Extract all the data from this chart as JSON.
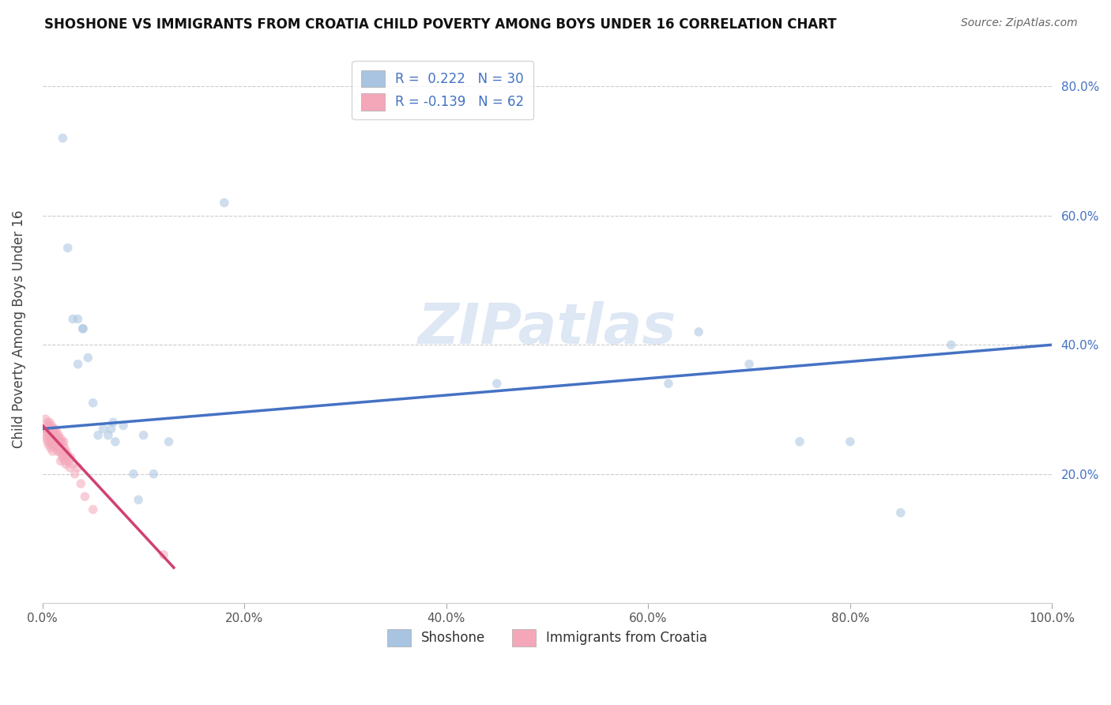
{
  "title": "SHOSHONE VS IMMIGRANTS FROM CROATIA CHILD POVERTY AMONG BOYS UNDER 16 CORRELATION CHART",
  "source": "Source: ZipAtlas.com",
  "ylabel": "Child Poverty Among Boys Under 16",
  "xlim": [
    0,
    1.0
  ],
  "ylim": [
    0,
    0.85
  ],
  "xticks": [
    0.0,
    0.2,
    0.4,
    0.6,
    0.8,
    1.0
  ],
  "xtick_labels": [
    "0.0%",
    "20.0%",
    "40.0%",
    "60.0%",
    "80.0%",
    "100.0%"
  ],
  "ytick_positions": [
    0.0,
    0.2,
    0.4,
    0.6,
    0.8
  ],
  "ytick_labels": [
    "",
    "20.0%",
    "40.0%",
    "60.0%",
    "80.0%"
  ],
  "shoshone_color": "#a8c4e0",
  "croatia_color": "#f4a7b9",
  "shoshone_line_color": "#4472c4",
  "croatia_line_color": "#d04070",
  "R_shoshone": 0.222,
  "N_shoshone": 30,
  "R_croatia": -0.139,
  "N_croatia": 62,
  "shoshone_scatter_x": [
    0.02,
    0.025,
    0.03,
    0.035,
    0.035,
    0.04,
    0.04,
    0.045,
    0.05,
    0.055,
    0.06,
    0.065,
    0.068,
    0.07,
    0.072,
    0.08,
    0.09,
    0.095,
    0.1,
    0.11,
    0.125,
    0.18,
    0.45,
    0.62,
    0.65,
    0.7,
    0.75,
    0.8,
    0.85,
    0.9
  ],
  "shoshone_scatter_y": [
    0.72,
    0.55,
    0.44,
    0.44,
    0.37,
    0.425,
    0.425,
    0.38,
    0.31,
    0.26,
    0.27,
    0.26,
    0.27,
    0.28,
    0.25,
    0.275,
    0.2,
    0.16,
    0.26,
    0.2,
    0.25,
    0.62,
    0.34,
    0.34,
    0.42,
    0.37,
    0.25,
    0.25,
    0.14,
    0.4
  ],
  "croatia_scatter_x": [
    0.001,
    0.002,
    0.003,
    0.003,
    0.004,
    0.004,
    0.005,
    0.005,
    0.005,
    0.006,
    0.006,
    0.006,
    0.007,
    0.007,
    0.007,
    0.008,
    0.008,
    0.008,
    0.009,
    0.009,
    0.009,
    0.01,
    0.01,
    0.01,
    0.011,
    0.011,
    0.012,
    0.012,
    0.013,
    0.013,
    0.014,
    0.014,
    0.015,
    0.015,
    0.016,
    0.016,
    0.017,
    0.017,
    0.018,
    0.018,
    0.019,
    0.019,
    0.02,
    0.02,
    0.021,
    0.021,
    0.022,
    0.022,
    0.023,
    0.023,
    0.024,
    0.025,
    0.026,
    0.027,
    0.028,
    0.03,
    0.032,
    0.035,
    0.038,
    0.042,
    0.05,
    0.12
  ],
  "croatia_scatter_y": [
    0.27,
    0.27,
    0.285,
    0.26,
    0.27,
    0.255,
    0.28,
    0.265,
    0.25,
    0.275,
    0.26,
    0.245,
    0.28,
    0.265,
    0.25,
    0.27,
    0.255,
    0.24,
    0.275,
    0.26,
    0.245,
    0.27,
    0.255,
    0.235,
    0.265,
    0.245,
    0.27,
    0.25,
    0.26,
    0.24,
    0.265,
    0.245,
    0.255,
    0.235,
    0.26,
    0.24,
    0.25,
    0.235,
    0.255,
    0.22,
    0.25,
    0.23,
    0.245,
    0.225,
    0.25,
    0.23,
    0.24,
    0.22,
    0.235,
    0.215,
    0.225,
    0.23,
    0.22,
    0.21,
    0.225,
    0.215,
    0.2,
    0.21,
    0.185,
    0.165,
    0.145,
    0.075
  ],
  "shoshone_line_x": [
    0.0,
    1.0
  ],
  "shoshone_line_y": [
    0.27,
    0.4
  ],
  "croatia_line_x": [
    0.0,
    0.13
  ],
  "croatia_line_y": [
    0.275,
    0.055
  ],
  "background_color": "#ffffff",
  "grid_color": "#cccccc",
  "marker_size": 70,
  "marker_alpha": 0.55
}
